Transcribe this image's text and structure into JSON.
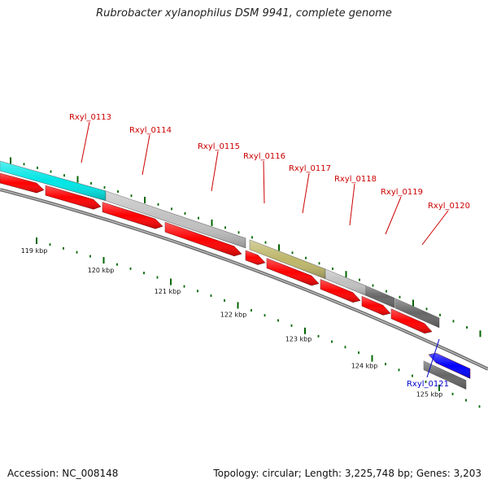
{
  "title": "Rubrobacter xylanophilus DSM 9941, complete genome",
  "footer": {
    "accession": "Accession: NC_008148",
    "info": "Topology: circular; Length: 3,225,748 bp; Genes: 3,203"
  },
  "colors": {
    "forward_label": "#cc0000",
    "reverse_label": "#0000cc",
    "cds": "#ff0000",
    "cds_reverse": "#0000ff",
    "feature_gray": "#c0c0c0",
    "feature_dark": "#666666",
    "feature_cyan": "#00e5e5",
    "feature_olive": "#bdb66a",
    "tick": "#006600",
    "backbone": "#888888"
  },
  "scale_labels": [
    "119 kbp",
    "120 kbp",
    "121 kbp",
    "122 kbp",
    "123 kbp",
    "124 kbp",
    "125 kbp"
  ],
  "gene_labels": [
    {
      "name": "Rxyl_0113",
      "strand": "forward"
    },
    {
      "name": "Rxyl_0114",
      "strand": "forward"
    },
    {
      "name": "Rxyl_0115",
      "strand": "forward"
    },
    {
      "name": "Rxyl_0116",
      "strand": "forward"
    },
    {
      "name": "Rxyl_0117",
      "strand": "forward"
    },
    {
      "name": "Rxyl_0118",
      "strand": "forward"
    },
    {
      "name": "Rxyl_0119",
      "strand": "forward"
    },
    {
      "name": "Rxyl_0120",
      "strand": "forward"
    },
    {
      "name": "Rxyl_0121",
      "strand": "reverse"
    }
  ]
}
